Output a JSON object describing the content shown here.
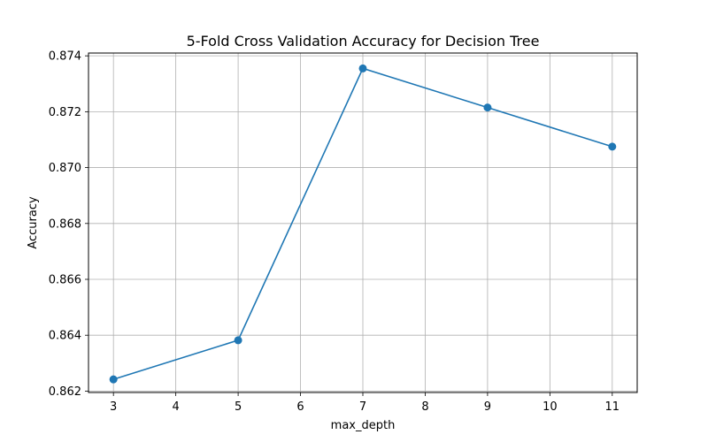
{
  "chart_data": {
    "type": "line",
    "title": "5-Fold Cross Validation Accuracy for Decision Tree",
    "xlabel": "max_depth",
    "ylabel": "Accuracy",
    "x": [
      3,
      5,
      7,
      9,
      11
    ],
    "series": [
      {
        "values": [
          0.86242,
          0.86382,
          0.87355,
          0.87215,
          0.87075
        ],
        "color": "#1f77b4",
        "marker": "circle"
      }
    ],
    "xticks": [
      3,
      4,
      5,
      6,
      7,
      8,
      9,
      10,
      11
    ],
    "yticks": [
      "0.862",
      "0.864",
      "0.866",
      "0.868",
      "0.870",
      "0.872",
      "0.874"
    ],
    "xlim": [
      2.6,
      11.4
    ],
    "ylim": [
      0.86195,
      0.8741
    ],
    "grid": true
  }
}
